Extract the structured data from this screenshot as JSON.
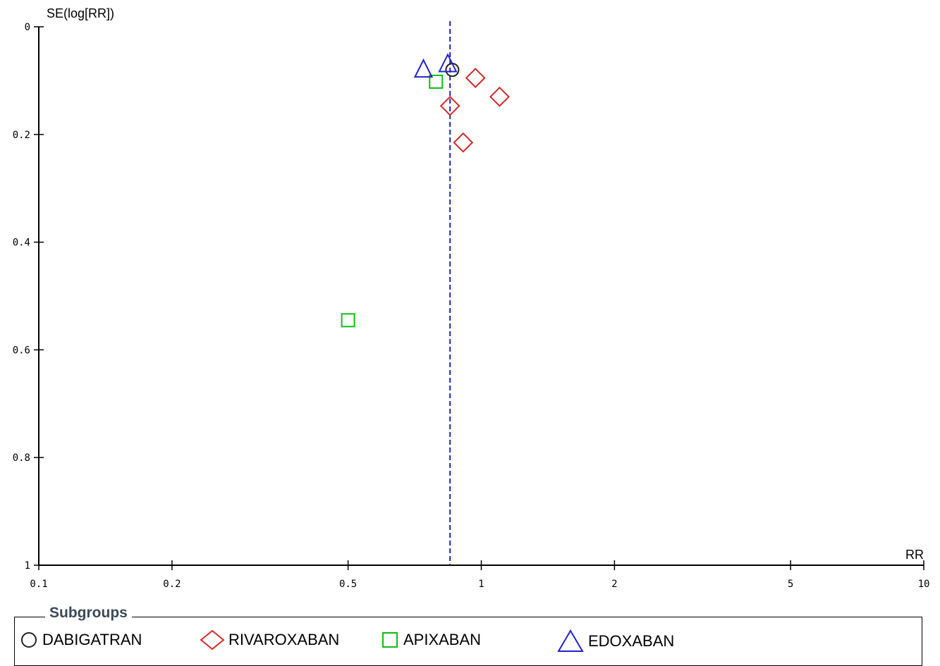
{
  "chart_data": {
    "type": "scatter",
    "title": "",
    "xlabel": "RR",
    "ylabel": "SE(log[RR])",
    "x_scale": "log",
    "xlim": [
      0.1,
      10
    ],
    "ylim": [
      0,
      1
    ],
    "y_inverted": true,
    "x_ticks": [
      0.1,
      0.2,
      0.5,
      1,
      2,
      5,
      10
    ],
    "x_tick_labels": [
      "0.1",
      "0.2",
      "0.5",
      "1",
      "2",
      "5",
      "10"
    ],
    "y_ticks": [
      0,
      0.2,
      0.4,
      0.6,
      0.8,
      1
    ],
    "y_tick_labels": [
      "0",
      "0.2",
      "0.4",
      "0.6",
      "0.8",
      "1"
    ],
    "reference_line_x": 0.85,
    "series": [
      {
        "name": "DABIGATRAN",
        "marker": "circle",
        "color": "#222222",
        "points": [
          {
            "x": 0.86,
            "y": 0.08
          }
        ]
      },
      {
        "name": "RIVAROXABAN",
        "marker": "diamond",
        "color": "#cc2a2a",
        "points": [
          {
            "x": 0.97,
            "y": 0.095
          },
          {
            "x": 1.1,
            "y": 0.13
          },
          {
            "x": 0.85,
            "y": 0.147
          },
          {
            "x": 0.91,
            "y": 0.215
          }
        ]
      },
      {
        "name": "APIXABAN",
        "marker": "square",
        "color": "#11bb11",
        "points": [
          {
            "x": 0.79,
            "y": 0.102
          },
          {
            "x": 0.5,
            "y": 0.545
          }
        ]
      },
      {
        "name": "EDOXABAN",
        "marker": "triangle",
        "color": "#2222cc",
        "points": [
          {
            "x": 0.74,
            "y": 0.08
          },
          {
            "x": 0.84,
            "y": 0.07
          }
        ]
      }
    ],
    "legend": {
      "title": "Subgroups",
      "placement": "bottom"
    },
    "grid": false
  }
}
